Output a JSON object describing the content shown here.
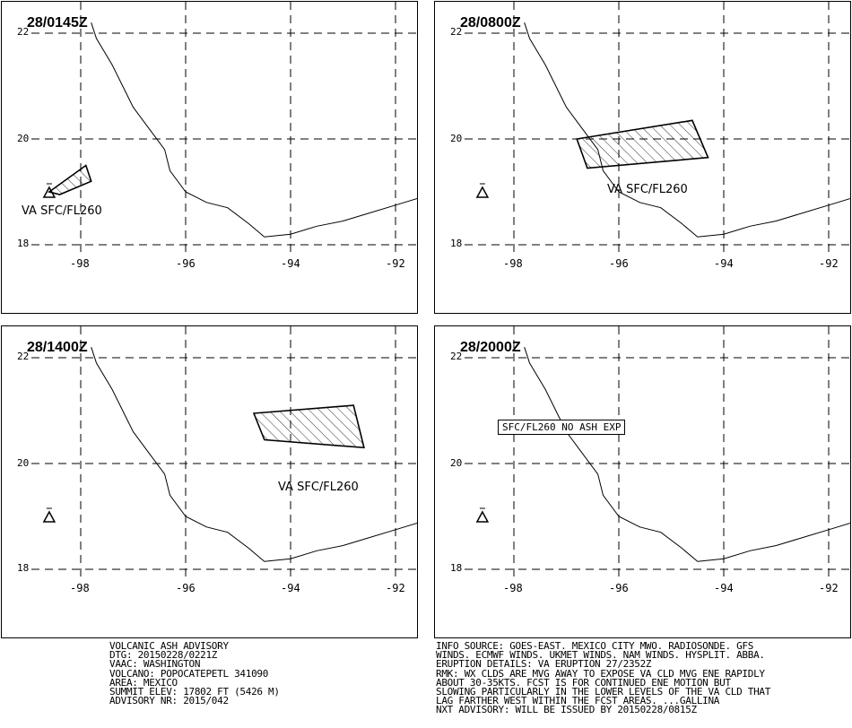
{
  "panels": [
    {
      "time": "28/0145Z",
      "label": "VA SFC/FL260",
      "ash_polygon": [
        [
          -98.6,
          19.0
        ],
        [
          -97.9,
          19.5
        ],
        [
          -97.8,
          19.2
        ],
        [
          -98.4,
          18.95
        ]
      ]
    },
    {
      "time": "28/0800Z",
      "label": "VA SFC/FL260",
      "ash_polygon": [
        [
          -96.8,
          20.0
        ],
        [
          -94.6,
          20.35
        ],
        [
          -94.3,
          19.65
        ],
        [
          -96.6,
          19.45
        ]
      ]
    },
    {
      "time": "28/1400Z",
      "label": "VA SFC/FL260",
      "ash_polygon": [
        [
          -94.7,
          20.95
        ],
        [
          -92.8,
          21.1
        ],
        [
          -92.6,
          20.3
        ],
        [
          -94.5,
          20.45
        ]
      ]
    },
    {
      "time": "28/2000Z",
      "label": "",
      "no_ash_text": "SFC/FL260 NO ASH EXP",
      "ash_polygon": []
    }
  ],
  "map": {
    "lat_labels": [
      "22",
      "20",
      "18"
    ],
    "lon_labels": [
      "-98",
      "-96",
      "-94",
      "-92"
    ],
    "volcano_symbol": "volcano-triangle-icon",
    "volcano_lonlat": [
      -98.6,
      19.0
    ],
    "coastline": [
      [
        -97.8,
        22.2
      ],
      [
        -97.7,
        21.9
      ],
      [
        -97.4,
        21.4
      ],
      [
        -97.2,
        21.0
      ],
      [
        -97.0,
        20.6
      ],
      [
        -96.7,
        20.2
      ],
      [
        -96.4,
        19.8
      ],
      [
        -96.3,
        19.4
      ],
      [
        -96.0,
        19.0
      ],
      [
        -95.6,
        18.8
      ],
      [
        -95.2,
        18.7
      ],
      [
        -94.8,
        18.4
      ],
      [
        -94.5,
        18.15
      ],
      [
        -94.0,
        18.2
      ],
      [
        -93.5,
        18.35
      ],
      [
        -93.0,
        18.45
      ],
      [
        -92.5,
        18.6
      ],
      [
        -92.0,
        18.75
      ],
      [
        -91.5,
        18.9
      ]
    ]
  },
  "footer": {
    "left_lines": [
      "VOLCANIC ASH ADVISORY",
      "DTG: 20150228/0221Z",
      "VAAC: WASHINGTON",
      "VOLCANO: POPOCATEPETL 341090",
      "AREA: MEXICO",
      "SUMMIT ELEV: 17802 FT (5426 M)",
      "ADVISORY NR: 2015/042"
    ],
    "right_lines": [
      "INFO SOURCE: GOES-EAST. MEXICO CITY MWO. RADIOSONDE. GFS",
      "WINDS. ECMWF WINDS. UKMET WINDS. NAM WINDS. HYSPLIT. ABBA.",
      "ERUPTION DETAILS: VA ERUPTION 27/2352Z",
      "RMK: WX CLDS ARE MVG AWAY TO EXPOSE VA CLD MVG ENE RAPIDLY",
      "ABOUT 30-35KTS. FCST IS FOR CONTINUED ENE MOTION BUT",
      "SLOWING PARTICULARLY IN THE LOWER LEVELS OF THE VA CLD THAT",
      "LAG FARTHER WEST WITHIN THE FCST AREAS. ...GALLINA",
      "NXT ADVISORY: WILL BE ISSUED BY 20150228/0815Z"
    ]
  }
}
